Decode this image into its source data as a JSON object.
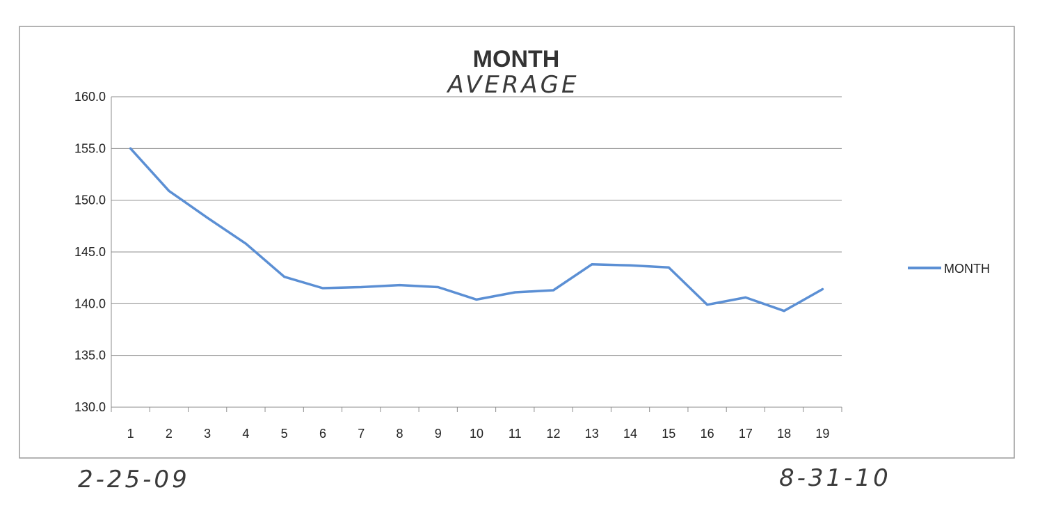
{
  "chart_data": {
    "type": "line",
    "title": "MONTH",
    "subtitle": "AVERAGE",
    "xlabel": "",
    "ylabel": "",
    "categories": [
      "1",
      "2",
      "3",
      "4",
      "5",
      "6",
      "7",
      "8",
      "9",
      "10",
      "11",
      "12",
      "13",
      "14",
      "15",
      "16",
      "17",
      "18",
      "19"
    ],
    "series": [
      {
        "name": "MONTH",
        "color": "#5b8fd4",
        "values": [
          155.0,
          150.9,
          148.3,
          145.8,
          142.6,
          141.5,
          141.6,
          141.8,
          141.6,
          140.4,
          141.1,
          141.3,
          143.8,
          143.7,
          143.5,
          139.9,
          140.6,
          139.3,
          141.4
        ]
      }
    ],
    "ylim": [
      130.0,
      160.0
    ],
    "yticks": [
      "130.0",
      "135.0",
      "140.0",
      "145.0",
      "150.0",
      "155.0",
      "160.0"
    ],
    "grid": true,
    "legend_position": "right"
  },
  "annotations": {
    "start_date": "2-25-09",
    "end_date": "8-31-10"
  }
}
